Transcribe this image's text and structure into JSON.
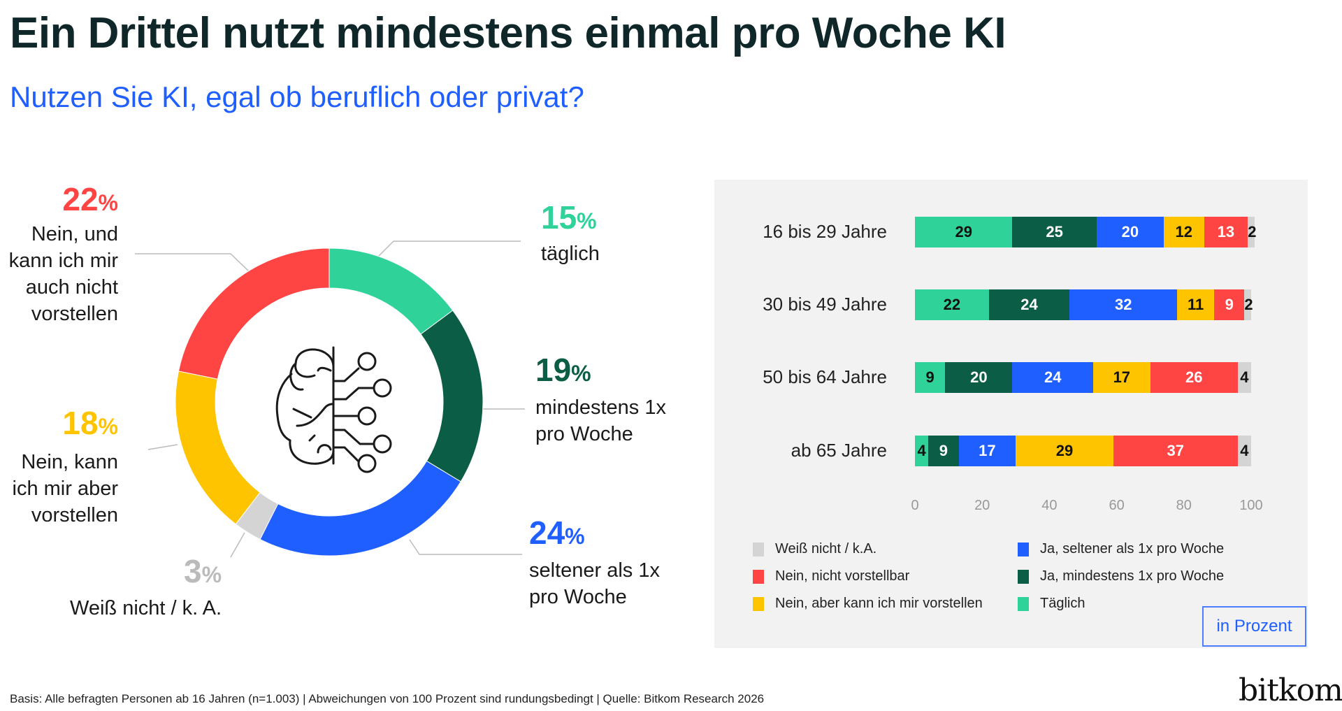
{
  "title": "Ein Drittel nutzt mindestens einmal pro Woche KI",
  "subtitle": "Nutzen Sie KI, egal ob beruflich oder privat?",
  "footer": "Basis: Alle befragten Personen ab 16 Jahren (n=1.003) | Abweichungen von 100 Prozent sind rundungsbedingt | Quelle: Bitkom Research 2026",
  "logo": "bitkom",
  "chart_data": [
    {
      "type": "pie",
      "variant": "donut",
      "center_icon": "brain-circuit-icon",
      "slices": [
        {
          "value": 15,
          "pct": "15",
          "unit": "%",
          "label": "täglich",
          "color": "#2fd39a"
        },
        {
          "value": 19,
          "pct": "19",
          "unit": "%",
          "label": "mindestens 1x pro Woche",
          "color": "#0b5e45"
        },
        {
          "value": 24,
          "pct": "24",
          "unit": "%",
          "label": "seltener als 1x pro Woche",
          "color": "#1f5fff"
        },
        {
          "value": 3,
          "pct": "3",
          "unit": "%",
          "label": "Weiß nicht / k. A.",
          "color": "#d4d4d4"
        },
        {
          "value": 18,
          "pct": "18",
          "unit": "%",
          "label": "Nein, kann ich mir aber vorstellen",
          "color": "#ffc400"
        },
        {
          "value": 22,
          "pct": "22",
          "unit": "%",
          "label": "Nein, und kann ich mir auch nicht vorstellen",
          "color": "#ff4444"
        }
      ]
    },
    {
      "type": "bar",
      "orientation": "horizontal",
      "stacked": true,
      "categories": [
        "16 bis 29 Jahre",
        "30 bis 49 Jahre",
        "50 bis 64 Jahre",
        "ab 65 Jahre"
      ],
      "series": [
        {
          "name": "Täglich",
          "color": "#2fd39a",
          "label_color": "#111111",
          "values": [
            29,
            22,
            9,
            4
          ]
        },
        {
          "name": "Ja, mindestens 1x pro Woche",
          "color": "#0b5e45",
          "label_color": "#ffffff",
          "values": [
            25,
            24,
            20,
            9
          ]
        },
        {
          "name": "Ja, seltener als 1x pro Woche",
          "color": "#1f5fff",
          "label_color": "#ffffff",
          "values": [
            20,
            32,
            24,
            17
          ]
        },
        {
          "name": "Nein, aber kann ich mir vorstellen",
          "color": "#ffc400",
          "label_color": "#111111",
          "values": [
            12,
            11,
            17,
            29
          ]
        },
        {
          "name": "Nein, nicht vorstellbar",
          "color": "#ff4444",
          "label_color": "#ffffff",
          "values": [
            13,
            9,
            26,
            37
          ]
        },
        {
          "name": "Weiß nicht / k.A.",
          "color": "#d4d4d4",
          "label_color": "#111111",
          "values": [
            2,
            2,
            4,
            4
          ]
        }
      ],
      "xlim": [
        0,
        100
      ],
      "xticks": [
        "0",
        "20",
        "40",
        "60",
        "80",
        "100"
      ],
      "legend_order": [
        "Weiß nicht / k.A.",
        "Nein, nicht vorstellbar",
        "Nein, aber kann ich mir vorstellen",
        "Ja, seltener als 1x pro Woche",
        "Ja, mindestens 1x pro Woche",
        "Täglich"
      ],
      "legend_position": "bottom",
      "unit_note": "in Prozent",
      "grid": false
    }
  ]
}
